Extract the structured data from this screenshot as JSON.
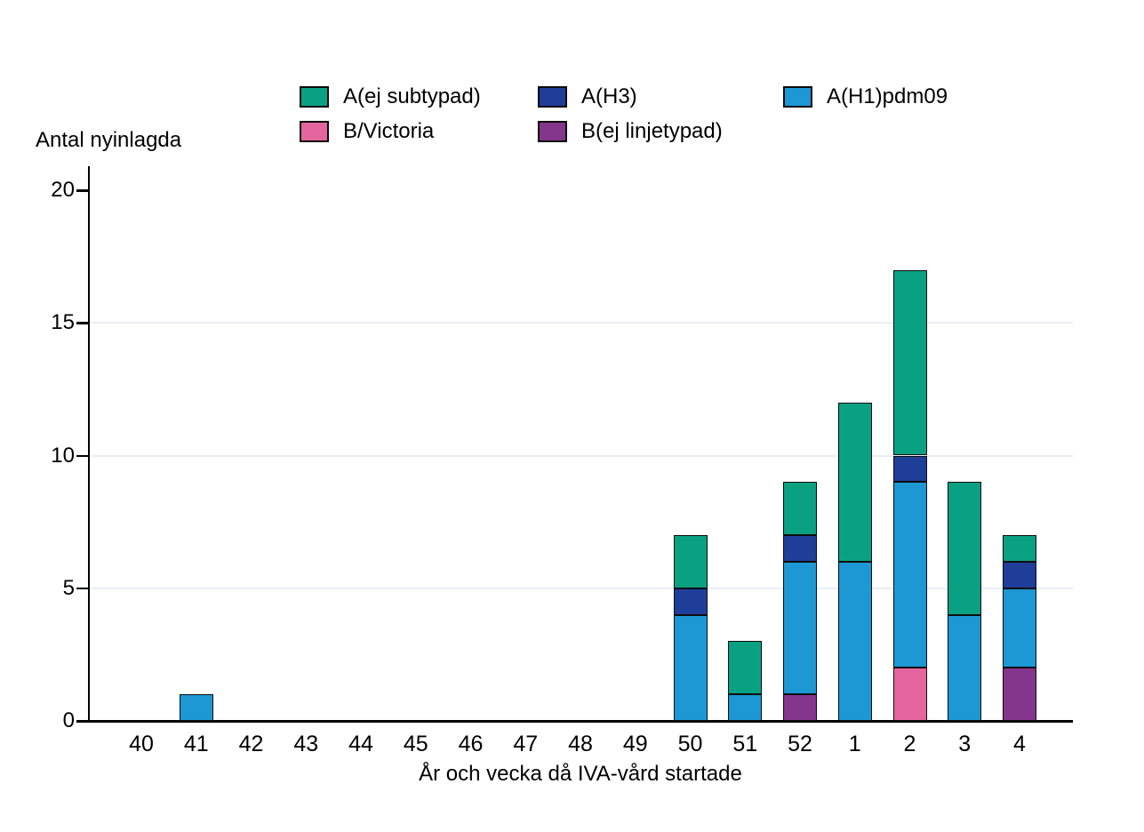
{
  "chart_data": {
    "type": "bar",
    "stacked": true,
    "title": "Antal nyinlagda",
    "ylabel": "Antal nyinlagda",
    "xlabel": "År och vecka då IVA-vård startade",
    "ylim": [
      0,
      20
    ],
    "yticks": [
      0,
      5,
      10,
      15,
      20
    ],
    "gridline_values": [
      5,
      10,
      15
    ],
    "grid": true,
    "legend_position": "top-center",
    "categories": [
      "40",
      "41",
      "42",
      "43",
      "44",
      "45",
      "46",
      "47",
      "48",
      "49",
      "50",
      "51",
      "52",
      "1",
      "2",
      "3",
      "4"
    ],
    "series": [
      {
        "name": "B/Victoria",
        "color": "#e5669e",
        "values": [
          0,
          0,
          0,
          0,
          0,
          0,
          0,
          0,
          0,
          0,
          0,
          0,
          0,
          0,
          2,
          0,
          0
        ]
      },
      {
        "name": "B(ej linjetypad)",
        "color": "#84368c",
        "values": [
          0,
          0,
          0,
          0,
          0,
          0,
          0,
          0,
          0,
          0,
          0,
          0,
          1,
          0,
          0,
          0,
          2
        ]
      },
      {
        "name": "A(H1)pdm09",
        "color": "#1d98d4",
        "values": [
          0,
          1,
          0,
          0,
          0,
          0,
          0,
          0,
          0,
          0,
          4,
          1,
          5,
          6,
          7,
          4,
          3
        ]
      },
      {
        "name": "A(H3)",
        "color": "#1f3e9a",
        "values": [
          0,
          0,
          0,
          0,
          0,
          0,
          0,
          0,
          0,
          0,
          1,
          0,
          1,
          0,
          1,
          0,
          1
        ]
      },
      {
        "name": "A(ej subtypad)",
        "color": "#0aa183",
        "values": [
          0,
          0,
          0,
          0,
          0,
          0,
          0,
          0,
          0,
          0,
          2,
          2,
          2,
          6,
          7,
          5,
          1
        ]
      }
    ],
    "legend_display_order": [
      "A(ej subtypad)",
      "A(H3)",
      "A(H1)pdm09",
      "B/Victoria",
      "B(ej linjetypad)"
    ],
    "totals": [
      0,
      1,
      0,
      0,
      0,
      0,
      0,
      0,
      0,
      0,
      7,
      3,
      9,
      12,
      17,
      9,
      7
    ]
  }
}
